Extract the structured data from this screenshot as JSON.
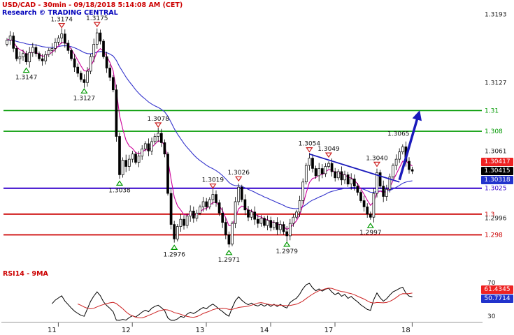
{
  "header": {
    "title": "USD/CAD - 30min - 09/18/2018 5:14:08 AM (CET)",
    "subtitle": "Research © TRADING CENTRAL"
  },
  "colors": {
    "title_red": "#cc0000",
    "provider_blue": "#0000bb",
    "candle": "#000000",
    "ma_fast": "#cc0099",
    "ma_slow": "#3333cc",
    "trend": "#1a1abb",
    "support_marker": "#009900",
    "resistance_marker": "#cc2222",
    "axis_text": "#222222",
    "rsi_line": "#000000",
    "rsi_ma_line": "#cc2222"
  },
  "chart_data": {
    "type": "candlestick",
    "symbol": "USD/CAD",
    "interval": "30min",
    "x_description": "30-minute bars, Sep 11 - Sep 18 2018",
    "y_range": [
      1.2952,
      1.32
    ],
    "y_axis_labels": [
      "1.3193",
      "1.3127",
      "1.3061",
      "1.2996"
    ],
    "x_tick_labels": [
      {
        "label": "11",
        "bar": 14
      },
      {
        "label": "12",
        "bar": 37
      },
      {
        "label": "13",
        "bar": 60
      },
      {
        "label": "14",
        "bar": 80
      },
      {
        "label": "17",
        "bar": 100
      },
      {
        "label": "18",
        "bar": 124
      }
    ],
    "closes": [
      1.3168,
      1.3172,
      1.316,
      1.315,
      1.3152,
      1.3155,
      1.3147,
      1.3156,
      1.3161,
      1.3155,
      1.315,
      1.3148,
      1.3154,
      1.3158,
      1.316,
      1.3166,
      1.317,
      1.3174,
      1.3165,
      1.3158,
      1.315,
      1.3142,
      1.3136,
      1.313,
      1.3127,
      1.3138,
      1.3152,
      1.3164,
      1.3175,
      1.3167,
      1.3152,
      1.3141,
      1.3132,
      1.312,
      1.3075,
      1.3038,
      1.3052,
      1.3046,
      1.3053,
      1.3058,
      1.305,
      1.3056,
      1.3063,
      1.3068,
      1.3061,
      1.307,
      1.3075,
      1.3078,
      1.3069,
      1.3058,
      1.302,
      1.299,
      1.2976,
      1.2988,
      1.2995,
      1.2989,
      1.2998,
      1.3003,
      1.2996,
      1.3001,
      1.3007,
      1.3012,
      1.3007,
      1.3014,
      1.3019,
      1.3011,
      1.3001,
      1.2992,
      1.298,
      1.2971,
      1.2991,
      1.3012,
      1.3026,
      1.3014,
      1.3004,
      1.2997,
      1.3002,
      1.2995,
      1.2991,
      1.2996,
      1.2989,
      1.2994,
      1.2987,
      1.2992,
      1.2985,
      1.299,
      1.2983,
      1.2979,
      1.2991,
      1.2997,
      1.3002,
      1.3013,
      1.3031,
      1.3047,
      1.3054,
      1.3044,
      1.3037,
      1.3044,
      1.3039,
      1.3046,
      1.3049,
      1.3041,
      1.3035,
      1.3041,
      1.3033,
      1.3038,
      1.3029,
      1.3034,
      1.3027,
      1.3021,
      1.3013,
      1.3007,
      1.3,
      1.2997,
      1.302,
      1.304,
      1.3027,
      1.3017,
      1.3024,
      1.3036,
      1.3047,
      1.3053,
      1.306,
      1.3065,
      1.3051,
      1.3043,
      1.30415
    ],
    "levels": [
      {
        "price": 1.31,
        "label": "1.31",
        "color": "#009900",
        "width": 1.6
      },
      {
        "price": 1.308,
        "label": "1.308",
        "color": "#009900",
        "width": 1.6
      },
      {
        "price": 1.3025,
        "label": "1.3025",
        "color": "#3300cc",
        "width": 2
      },
      {
        "price": 1.3,
        "label": "1.3",
        "color": "#cc0000",
        "width": 1.8
      },
      {
        "price": 1.298,
        "label": "1.298",
        "color": "#cc0000",
        "width": 1.8
      }
    ],
    "markers": [
      {
        "bar": 6,
        "price": 1.3147,
        "type": "support",
        "label": "1.3147"
      },
      {
        "bar": 17,
        "price": 1.3174,
        "type": "resistance",
        "label": "1.3174"
      },
      {
        "bar": 24,
        "price": 1.3127,
        "type": "support",
        "label": "1.3127"
      },
      {
        "bar": 28,
        "price": 1.3175,
        "type": "resistance",
        "label": "1.3175"
      },
      {
        "bar": 35,
        "price": 1.3038,
        "type": "support",
        "label": "1.3038"
      },
      {
        "bar": 47,
        "price": 1.3078,
        "type": "resistance",
        "label": "1.3078"
      },
      {
        "bar": 52,
        "price": 1.2976,
        "type": "support",
        "label": "1.2976"
      },
      {
        "bar": 64,
        "price": 1.3019,
        "type": "resistance",
        "label": "1.3019"
      },
      {
        "bar": 69,
        "price": 1.2971,
        "type": "support",
        "label": "1.2971"
      },
      {
        "bar": 72,
        "price": 1.3026,
        "type": "resistance",
        "label": "1.3026"
      },
      {
        "bar": 87,
        "price": 1.2979,
        "type": "support",
        "label": "1.2979"
      },
      {
        "bar": 94,
        "price": 1.3054,
        "type": "resistance",
        "label": "1.3054"
      },
      {
        "bar": 100,
        "price": 1.3049,
        "type": "resistance",
        "label": "1.3049"
      },
      {
        "bar": 113,
        "price": 1.2997,
        "type": "support",
        "label": "1.2997"
      },
      {
        "bar": 115,
        "price": 1.304,
        "type": "resistance",
        "label": "1.3040"
      },
      {
        "bar": 123,
        "price": 1.3065,
        "type": "target",
        "label": "1.3065"
      }
    ],
    "trendline": {
      "from_bar": 94,
      "from_price": 1.3058,
      "to_bar": 122,
      "to_price": 1.3031
    },
    "arrow": {
      "from_bar": 122,
      "from_price": 1.3033,
      "to_bar": 128,
      "to_price": 1.3097
    },
    "badges": [
      {
        "text": "1.30417",
        "bg": "#ee2222"
      },
      {
        "text": "1.30415",
        "bg": "#000000"
      },
      {
        "text": "1.30318",
        "bg": "#2233cc"
      }
    ],
    "rsi": {
      "label": "RSI14 - 9MA",
      "period": 14,
      "ma_period": 9,
      "levels": [
        "70",
        "30"
      ],
      "last_rsi": 61.4345,
      "last_ma": 50.7714,
      "badges": [
        {
          "text": "61.4345",
          "bg": "#ee2222"
        },
        {
          "text": "50.7714",
          "bg": "#2233cc"
        }
      ]
    }
  }
}
